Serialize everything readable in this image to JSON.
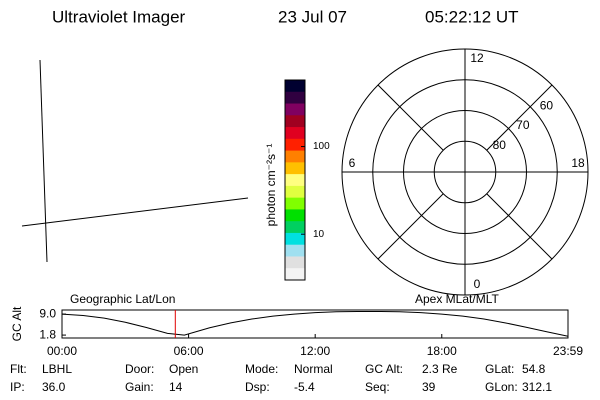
{
  "header": {
    "instrument": "Ultraviolet Imager",
    "date": "23 Jul 07",
    "time": "05:22:12 UT"
  },
  "chart_data": [
    {
      "type": "polar",
      "rlim": [
        90,
        50
      ],
      "rticks": [
        80,
        70,
        60
      ],
      "angle_ticks": [
        0,
        6,
        12,
        18
      ]
    },
    {
      "type": "colorbar",
      "ylabel": "photon cm⁻²s⁻¹",
      "log": true,
      "ylim": [
        3,
        575
      ],
      "yticks": [
        10,
        100
      ],
      "colors": [
        "#000030",
        "#300040",
        "#800060",
        "#a00020",
        "#e00020",
        "#ff2000",
        "#ff8000",
        "#ffc000",
        "#ffff80",
        "#e0ff40",
        "#80ff00",
        "#00e000",
        "#00d060",
        "#00e0e0",
        "#a0e0f0",
        "#e0e0e0",
        "#f4f4f4"
      ]
    },
    {
      "type": "line",
      "ylabel": "GC Alt",
      "left_label": "Geographic Lat/Lon",
      "right_label": "Apex MLat/MLT",
      "xlim": [
        0,
        23.983
      ],
      "ylim": [
        0.8,
        10.4
      ],
      "xticks": [
        {
          "value": 0,
          "label": "00:00"
        },
        {
          "value": 6,
          "label": "06:00"
        },
        {
          "value": 12,
          "label": "12:00"
        },
        {
          "value": 18,
          "label": "18:00"
        },
        {
          "value": 23.983,
          "label": "23:59"
        }
      ],
      "yticks": [
        1.8,
        {
          "value": 9,
          "label": "9.0"
        }
      ],
      "marker_x": 5.37,
      "marker_color": "#e00000",
      "x": [
        0,
        1,
        2,
        3,
        4,
        5,
        5.8,
        7,
        8,
        9,
        10,
        11,
        12,
        13,
        14,
        15,
        16,
        17,
        18,
        19,
        20,
        21,
        22,
        23,
        23.983
      ],
      "series": [
        {
          "color": "#000000",
          "values": [
            9.0,
            8.5,
            7.6,
            6.2,
            4.4,
            2.4,
            1.8,
            4.3,
            6.0,
            7.3,
            8.3,
            9.0,
            9.5,
            9.8,
            9.9,
            9.9,
            9.8,
            9.5,
            9.0,
            8.3,
            7.3,
            6.0,
            4.5,
            2.9,
            1.4
          ]
        }
      ]
    }
  ],
  "status": [
    [
      [
        "Flt:",
        "LBHL"
      ],
      [
        "Door:",
        "Open"
      ],
      [
        "Mode:",
        "Normal"
      ],
      [
        "GC Alt:",
        "2.3 Re"
      ],
      [
        "GLat:",
        "54.8"
      ]
    ],
    [
      [
        "IP:",
        "36.0"
      ],
      [
        "Gain:",
        "14"
      ],
      [
        "Dsp:",
        "-5.4"
      ],
      [
        "Seq:",
        "39"
      ],
      [
        "GLon:",
        "312.1"
      ]
    ]
  ]
}
